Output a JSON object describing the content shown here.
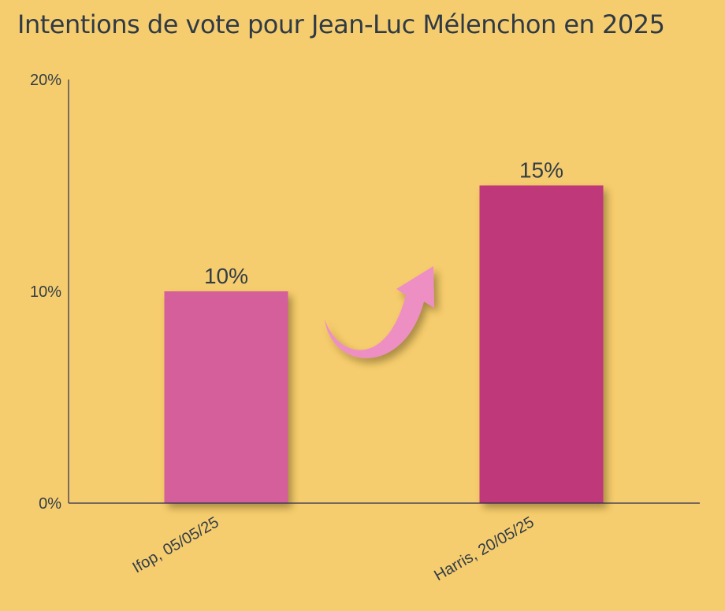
{
  "chart_data": {
    "type": "bar",
    "title": "Intentions de vote pour Jean-Luc Mélenchon en 2025",
    "xlabel": "",
    "ylabel": "",
    "categories": [
      "Ifop, 05/05/25",
      "Harris, 20/05/25"
    ],
    "values": [
      10,
      15
    ],
    "value_labels": [
      "10%",
      "15%"
    ],
    "bar_colors": [
      "#d45f9b",
      "#bf387a"
    ],
    "ylim": [
      0,
      20
    ],
    "yticks": [
      0,
      10,
      20
    ],
    "ytick_labels": [
      "0%",
      "10%",
      "20%"
    ],
    "grid": false,
    "legend": "none",
    "annotation": {
      "type": "curved-arrow",
      "direction": "up",
      "color": "#ee8fc3"
    },
    "colors": {
      "background": "#f6cd6e",
      "axis": "#2a2a55",
      "text": "#333d47"
    }
  }
}
